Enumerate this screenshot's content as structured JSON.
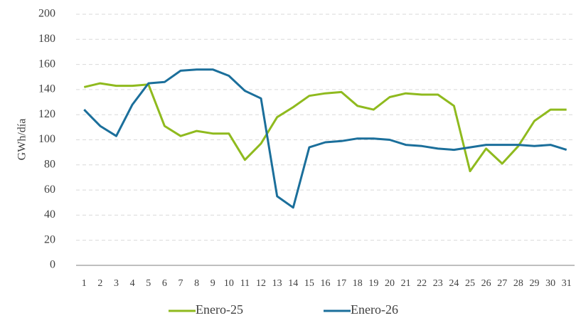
{
  "chart_data": {
    "type": "line",
    "y_label": "GWh/día",
    "categories": [
      "1",
      "2",
      "3",
      "4",
      "5",
      "6",
      "7",
      "8",
      "9",
      "10",
      "11",
      "12",
      "13",
      "14",
      "15",
      "16",
      "17",
      "18",
      "19",
      "20",
      "21",
      "22",
      "23",
      "24",
      "25",
      "26",
      "27",
      "28",
      "29",
      "30",
      "31"
    ],
    "series": [
      {
        "name": "Enero-25",
        "color": "#8fba1e",
        "values": [
          142,
          145,
          143,
          143,
          144,
          111,
          103,
          107,
          105,
          105,
          84,
          97,
          118,
          126,
          135,
          137,
          138,
          127,
          124,
          134,
          137,
          136,
          136,
          127,
          75,
          93,
          81,
          95,
          115,
          124,
          124
        ]
      },
      {
        "name": "Enero-26",
        "color": "#1b6f9b",
        "values": [
          124,
          111,
          103,
          128,
          145,
          146,
          155,
          156,
          156,
          151,
          139,
          133,
          55,
          46,
          94,
          98,
          99,
          101,
          101,
          100,
          96,
          95,
          93,
          92,
          94,
          96,
          96,
          96,
          95,
          96,
          92
        ]
      }
    ],
    "ylim": [
      0,
      200
    ],
    "yticks": [
      0,
      20,
      40,
      60,
      80,
      100,
      120,
      140,
      160,
      180,
      200
    ],
    "grid": true,
    "legend": "bottom"
  }
}
